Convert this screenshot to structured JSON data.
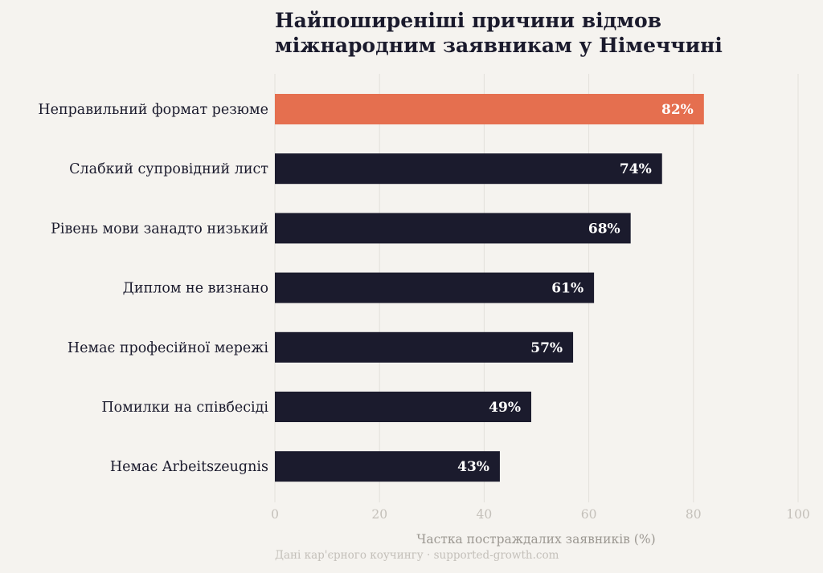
{
  "chart_data": {
    "type": "bar",
    "orientation": "horizontal",
    "title_lines": [
      "Найпоширеніші причини відмов",
      "міжнародним заявникам у Німеччині"
    ],
    "categories": [
      "Неправильний формат резюме",
      "Слабкий супровідний лист",
      "Рівень мови занадто низький",
      "Диплом не визнано",
      "Немає професійної мережі",
      "Помилки на співбесіді",
      "Немає Arbeitszeugnis"
    ],
    "values": [
      82,
      74,
      68,
      61,
      57,
      49,
      43
    ],
    "data_labels": [
      "82%",
      "74%",
      "68%",
      "61%",
      "57%",
      "49%",
      "43%"
    ],
    "xlabel": "Частка постраждалих заявників (%)",
    "ylabel": "",
    "xlim": [
      0,
      100
    ],
    "xticks": [
      0,
      20,
      40,
      60,
      80,
      100
    ],
    "xtick_labels": [
      "0",
      "20",
      "40",
      "60",
      "80",
      "100"
    ],
    "grid": "vertical",
    "colors": {
      "highlight": "#e56f4f",
      "default": "#1b1b2d",
      "background": "#f5f3ef",
      "grid": "#e3e0db"
    },
    "footer": "Дані кар'єрного коучингу · supported-growth.com"
  }
}
